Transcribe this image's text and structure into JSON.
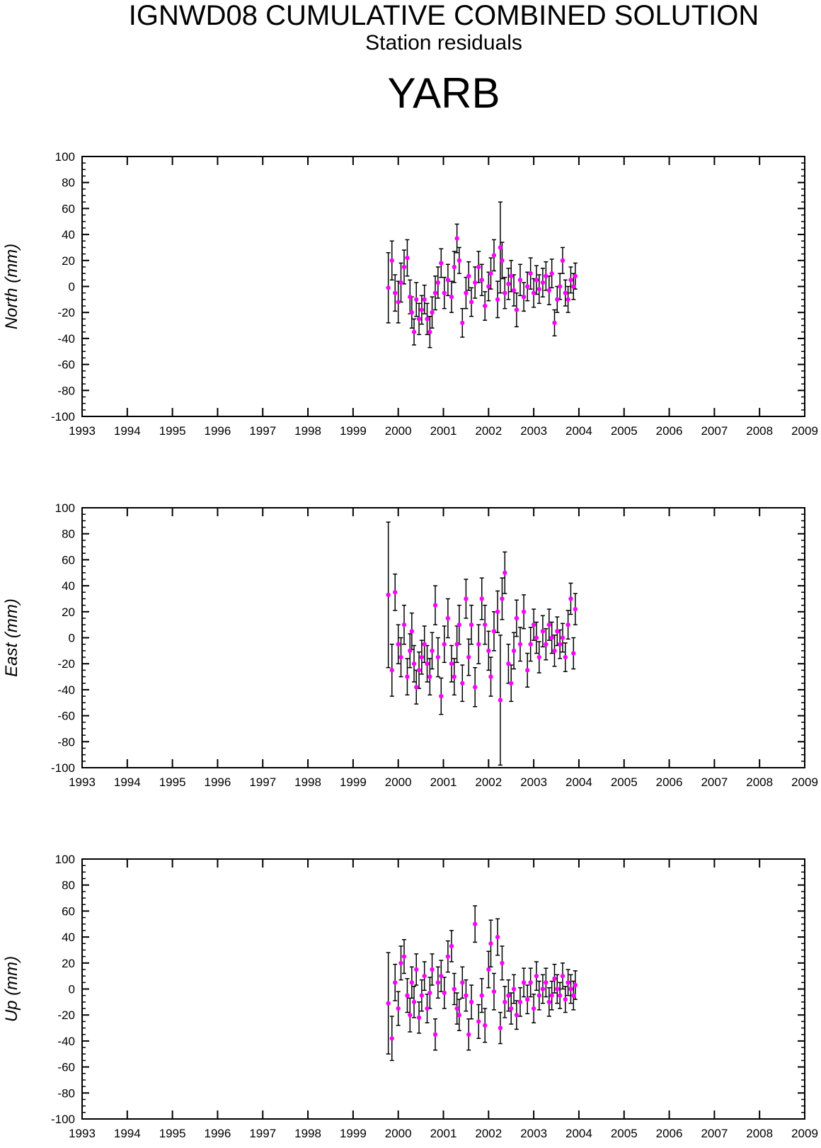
{
  "header": {
    "title": "IGNWD08 CUMULATIVE COMBINED SOLUTION",
    "subtitle": "Station residuals",
    "station": "YARB"
  },
  "colors": {
    "marker": "#ff00ff",
    "axes": "#000000",
    "error_bar": "#000000"
  },
  "chart_data": [
    {
      "type": "scatter",
      "ylabel": "North (mm)",
      "xlim": [
        1993,
        2009
      ],
      "ylim": [
        -100,
        100
      ],
      "x_ticks": [
        "1993",
        "1994",
        "1995",
        "1996",
        "1997",
        "1998",
        "1999",
        "2000",
        "2001",
        "2002",
        "2003",
        "2004",
        "2005",
        "2006",
        "2007",
        "2008",
        "2009"
      ],
      "y_ticks": [
        "100",
        "80",
        "60",
        "40",
        "20",
        "0",
        "-20",
        "-40",
        "-60",
        "-80",
        "-100"
      ],
      "grid": false,
      "series": [
        {
          "x": [
            1999.78,
            1999.86,
            1999.93,
            2000.0,
            2000.06,
            2000.13,
            2000.2,
            2000.26,
            2000.3,
            2000.35,
            2000.4,
            2000.46,
            2000.52,
            2000.58,
            2000.64,
            2000.7,
            2000.75,
            2000.82,
            2000.88,
            2000.95,
            2001.02,
            2001.1,
            2001.18,
            2001.24,
            2001.3,
            2001.35,
            2001.42,
            2001.5,
            2001.56,
            2001.62,
            2001.7,
            2001.78,
            2001.85,
            2001.92,
            2002.0,
            2002.05,
            2002.12,
            2002.2,
            2002.26,
            2002.3,
            2002.36,
            2002.44,
            2002.5,
            2002.56,
            2002.62,
            2002.7,
            2002.78,
            2002.86,
            2002.93,
            2003.0,
            2003.06,
            2003.12,
            2003.2,
            2003.27,
            2003.34,
            2003.4,
            2003.46,
            2003.52,
            2003.58,
            2003.64,
            2003.7,
            2003.76,
            2003.82,
            2003.88,
            2003.92
          ],
          "y": [
            -1,
            20,
            -5,
            -12,
            3,
            15,
            22,
            -8,
            -20,
            -35,
            -10,
            -25,
            -18,
            -10,
            -25,
            -35,
            -20,
            -5,
            3,
            18,
            -5,
            5,
            -8,
            15,
            37,
            20,
            -28,
            -5,
            8,
            -12,
            3,
            15,
            5,
            -15,
            0,
            10,
            24,
            -10,
            30,
            20,
            -5,
            2,
            8,
            -3,
            -18,
            5,
            -8,
            0,
            10,
            -5,
            5,
            -2,
            3,
            8,
            -3,
            10,
            -28,
            -10,
            0,
            20,
            -5,
            -10,
            5,
            0,
            8
          ],
          "err": [
            27,
            15,
            14,
            16,
            15,
            13,
            14,
            13,
            12,
            10,
            13,
            12,
            11,
            11,
            12,
            12,
            12,
            13,
            12,
            11,
            12,
            12,
            12,
            12,
            11,
            10,
            11,
            12,
            11,
            11,
            12,
            12,
            12,
            11,
            11,
            12,
            12,
            14,
            35,
            14,
            12,
            12,
            12,
            12,
            13,
            12,
            11,
            11,
            12,
            11,
            11,
            11,
            11,
            11,
            11,
            11,
            10,
            10,
            10,
            10,
            10,
            10,
            10,
            10,
            10
          ]
        }
      ]
    },
    {
      "type": "scatter",
      "ylabel": "East (mm)",
      "xlim": [
        1993,
        2009
      ],
      "ylim": [
        -100,
        100
      ],
      "x_ticks": [
        "1993",
        "1994",
        "1995",
        "1996",
        "1997",
        "1998",
        "1999",
        "2000",
        "2001",
        "2002",
        "2003",
        "2004",
        "2005",
        "2006",
        "2007",
        "2008",
        "2009"
      ],
      "y_ticks": [
        "100",
        "80",
        "60",
        "40",
        "20",
        "0",
        "-20",
        "-40",
        "-60",
        "-80",
        "-100"
      ],
      "grid": false,
      "series": [
        {
          "x": [
            1999.78,
            1999.86,
            1999.93,
            2000.0,
            2000.06,
            2000.13,
            2000.2,
            2000.26,
            2000.3,
            2000.35,
            2000.4,
            2000.46,
            2000.52,
            2000.58,
            2000.64,
            2000.7,
            2000.75,
            2000.82,
            2000.88,
            2000.95,
            2001.02,
            2001.1,
            2001.18,
            2001.24,
            2001.3,
            2001.35,
            2001.42,
            2001.5,
            2001.56,
            2001.62,
            2001.7,
            2001.78,
            2001.85,
            2001.92,
            2002.0,
            2002.05,
            2002.12,
            2002.2,
            2002.26,
            2002.3,
            2002.36,
            2002.44,
            2002.5,
            2002.56,
            2002.62,
            2002.7,
            2002.78,
            2002.86,
            2002.93,
            2003.0,
            2003.06,
            2003.12,
            2003.2,
            2003.27,
            2003.34,
            2003.4,
            2003.46,
            2003.52,
            2003.58,
            2003.64,
            2003.7,
            2003.76,
            2003.82,
            2003.88,
            2003.92
          ],
          "y": [
            33,
            -25,
            35,
            -5,
            -15,
            10,
            -30,
            -10,
            5,
            -20,
            -38,
            -25,
            -15,
            -5,
            -20,
            -30,
            -10,
            25,
            -15,
            -45,
            -5,
            15,
            -20,
            -30,
            -5,
            10,
            -35,
            30,
            -15,
            10,
            -38,
            -5,
            30,
            10,
            -10,
            -30,
            5,
            20,
            -48,
            30,
            50,
            -20,
            -35,
            -10,
            15,
            -5,
            20,
            -25,
            -5,
            10,
            0,
            -15,
            5,
            -5,
            10,
            0,
            -10,
            5,
            -5,
            0,
            -15,
            10,
            30,
            -12,
            22
          ],
          "err": [
            56,
            20,
            14,
            15,
            15,
            15,
            14,
            13,
            14,
            14,
            13,
            14,
            13,
            14,
            14,
            14,
            14,
            15,
            15,
            14,
            14,
            15,
            14,
            14,
            14,
            15,
            14,
            15,
            14,
            15,
            15,
            15,
            16,
            15,
            15,
            15,
            15,
            16,
            50,
            16,
            16,
            15,
            14,
            14,
            14,
            13,
            13,
            13,
            13,
            12,
            12,
            12,
            12,
            12,
            12,
            12,
            12,
            11,
            11,
            11,
            11,
            11,
            12,
            12,
            12
          ]
        }
      ]
    },
    {
      "type": "scatter",
      "ylabel": "Up (mm)",
      "xlim": [
        1993,
        2009
      ],
      "ylim": [
        -100,
        100
      ],
      "x_ticks": [
        "1993",
        "1994",
        "1995",
        "1996",
        "1997",
        "1998",
        "1999",
        "2000",
        "2001",
        "2002",
        "2003",
        "2004",
        "2005",
        "2006",
        "2007",
        "2008",
        "2009"
      ],
      "y_ticks": [
        "100",
        "80",
        "60",
        "40",
        "20",
        "0",
        "-20",
        "-40",
        "-60",
        "-80",
        "-100"
      ],
      "grid": false,
      "series": [
        {
          "x": [
            1999.78,
            1999.86,
            1999.93,
            2000.0,
            2000.06,
            2000.13,
            2000.2,
            2000.26,
            2000.3,
            2000.35,
            2000.4,
            2000.46,
            2000.52,
            2000.58,
            2000.64,
            2000.7,
            2000.75,
            2000.82,
            2000.88,
            2000.95,
            2001.02,
            2001.1,
            2001.18,
            2001.24,
            2001.3,
            2001.35,
            2001.42,
            2001.5,
            2001.56,
            2001.62,
            2001.7,
            2001.78,
            2001.85,
            2001.92,
            2002.0,
            2002.05,
            2002.12,
            2002.2,
            2002.26,
            2002.3,
            2002.36,
            2002.44,
            2002.5,
            2002.56,
            2002.62,
            2002.7,
            2002.78,
            2002.86,
            2002.93,
            2003.0,
            2003.06,
            2003.12,
            2003.2,
            2003.27,
            2003.34,
            2003.4,
            2003.46,
            2003.52,
            2003.58,
            2003.64,
            2003.7,
            2003.76,
            2003.82,
            2003.88,
            2003.92
          ],
          "y": [
            -11,
            -38,
            5,
            -15,
            20,
            25,
            -5,
            -20,
            5,
            -10,
            15,
            -22,
            -5,
            10,
            -15,
            -3,
            15,
            -35,
            5,
            10,
            -3,
            25,
            33,
            0,
            -15,
            -20,
            5,
            -5,
            -35,
            -10,
            50,
            -25,
            -5,
            -28,
            15,
            35,
            -2,
            40,
            -30,
            20,
            -10,
            -5,
            -15,
            0,
            -20,
            -10,
            5,
            -8,
            5,
            -15,
            10,
            -5,
            0,
            5,
            -10,
            -5,
            8,
            0,
            -5,
            10,
            -8,
            5,
            0,
            -5,
            3
          ],
          "err": [
            39,
            17,
            14,
            13,
            13,
            13,
            13,
            13,
            12,
            12,
            12,
            12,
            12,
            11,
            11,
            12,
            12,
            12,
            12,
            12,
            12,
            12,
            12,
            12,
            12,
            12,
            12,
            12,
            12,
            13,
            14,
            13,
            13,
            13,
            14,
            18,
            14,
            14,
            12,
            13,
            12,
            12,
            12,
            11,
            11,
            11,
            11,
            11,
            11,
            11,
            11,
            11,
            11,
            11,
            11,
            11,
            11,
            11,
            10,
            10,
            10,
            10,
            11,
            11,
            11
          ]
        }
      ]
    }
  ]
}
